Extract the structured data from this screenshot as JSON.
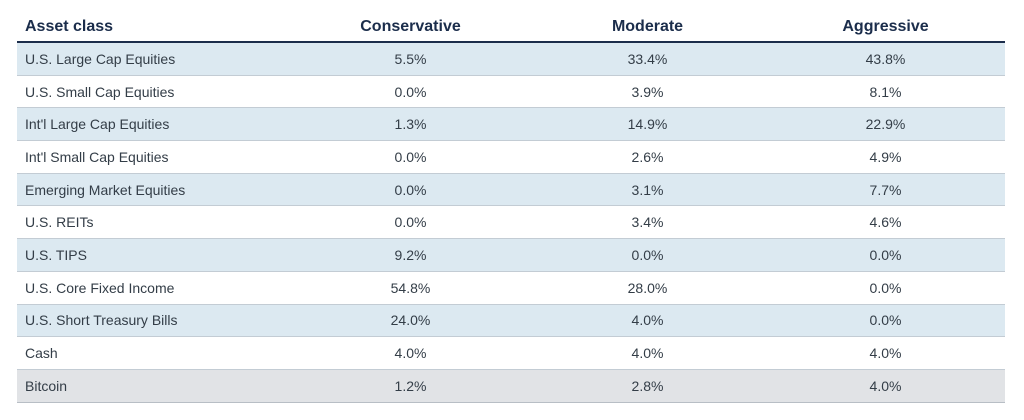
{
  "table": {
    "headers": [
      "Asset class",
      "Conservative",
      "Moderate",
      "Aggressive"
    ],
    "rows": [
      [
        "U.S. Large Cap Equities",
        "5.5%",
        "33.4%",
        "43.8%"
      ],
      [
        "U.S. Small Cap Equities",
        "0.0%",
        "3.9%",
        "8.1%"
      ],
      [
        "Int'l Large Cap Equities",
        "1.3%",
        "14.9%",
        "22.9%"
      ],
      [
        "Int'l Small Cap Equities",
        "0.0%",
        "2.6%",
        "4.9%"
      ],
      [
        "Emerging Market Equities",
        "0.0%",
        "3.1%",
        "7.7%"
      ],
      [
        "U.S. REITs",
        "0.0%",
        "3.4%",
        "4.6%"
      ],
      [
        "U.S. TIPS",
        "9.2%",
        "0.0%",
        "0.0%"
      ],
      [
        "U.S. Core Fixed Income",
        "54.8%",
        "28.0%",
        "0.0%"
      ],
      [
        "U.S. Short Treasury Bills",
        "24.0%",
        "4.0%",
        "0.0%"
      ],
      [
        "Cash",
        "4.0%",
        "4.0%",
        "4.0%"
      ],
      [
        "Bitcoin",
        "1.2%",
        "2.8%",
        "4.0%"
      ]
    ]
  }
}
